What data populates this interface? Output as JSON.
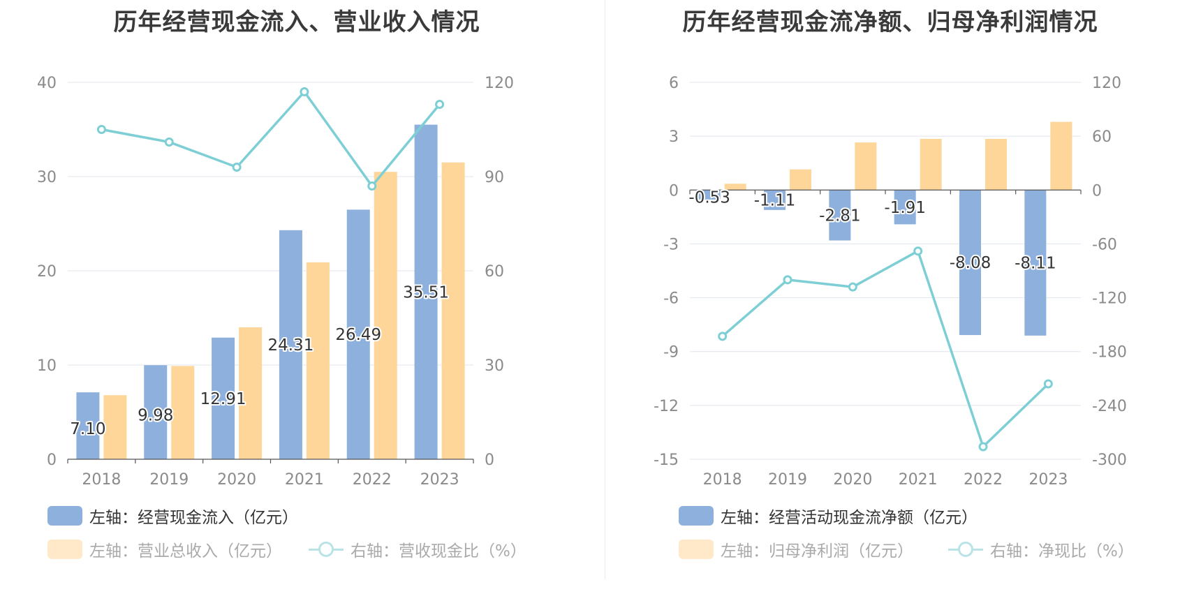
{
  "colors": {
    "bar_blue": "#8eb0dc",
    "bar_orange": "#fed69a",
    "line_teal": "#7dcfd5",
    "grid": "#e0e4ee",
    "legend_muted_blue": "#b9e3e6",
    "legend_muted_orange": "#ffe9c8"
  },
  "chart_data": [
    {
      "type": "bar",
      "title": "历年经营现金流入、营业收入情况",
      "categories": [
        "2018",
        "2019",
        "2020",
        "2021",
        "2022",
        "2023"
      ],
      "left_axis": {
        "ylim": [
          0,
          40
        ],
        "ticks": [
          "0",
          "10",
          "20",
          "30",
          "40"
        ]
      },
      "right_axis": {
        "ylim": [
          0,
          120
        ],
        "ticks": [
          "0",
          "30",
          "60",
          "90",
          "120"
        ]
      },
      "grid": true,
      "series": [
        {
          "name": "左轴：经营现金流入（亿元）",
          "kind": "bar",
          "axis": "left",
          "values": [
            7.1,
            9.98,
            12.91,
            24.31,
            26.49,
            35.51
          ],
          "labels": [
            "7.10",
            "9.98",
            "12.91",
            "24.31",
            "26.49",
            "35.51"
          ]
        },
        {
          "name": "左轴：营业总收入（亿元）",
          "kind": "bar",
          "axis": "left",
          "values": [
            6.8,
            9.9,
            14.0,
            20.9,
            30.5,
            31.5
          ]
        },
        {
          "name": "右轴：营收现金比（%）",
          "kind": "line",
          "axis": "right",
          "values": [
            105,
            101,
            93,
            117,
            87,
            113
          ]
        }
      ],
      "legend": [
        {
          "label": "左轴：经营现金流入（亿元）",
          "type": "rect",
          "active": true
        },
        {
          "label": "左轴：营业总收入（亿元）",
          "type": "rect",
          "active": false
        },
        {
          "label": "右轴：营收现金比（%）",
          "type": "line",
          "active": false
        }
      ]
    },
    {
      "type": "bar",
      "title": "历年经营现金流净额、归母净利润情况",
      "categories": [
        "2018",
        "2019",
        "2020",
        "2021",
        "2022",
        "2023"
      ],
      "left_axis": {
        "ylim": [
          -15,
          6
        ],
        "ticks": [
          "-15",
          "-12",
          "-9",
          "-6",
          "-3",
          "0",
          "3",
          "6"
        ]
      },
      "right_axis": {
        "ylim": [
          -300,
          120
        ],
        "ticks": [
          "-300",
          "-240",
          "-180",
          "-120",
          "-60",
          "0",
          "60",
          "120"
        ]
      },
      "grid": true,
      "series": [
        {
          "name": "左轴：经营活动现金流净额（亿元）",
          "kind": "bar",
          "axis": "left",
          "values": [
            -0.53,
            -1.11,
            -2.81,
            -1.91,
            -8.08,
            -8.11
          ],
          "labels": [
            "-0.53",
            "-1.11",
            "-2.81",
            "-1.91",
            "-8.08",
            "-8.11"
          ]
        },
        {
          "name": "左轴：归母净利润（亿元）",
          "kind": "bar",
          "axis": "left",
          "values": [
            0.35,
            1.15,
            2.65,
            2.85,
            2.85,
            3.8
          ]
        },
        {
          "name": "右轴：净现比（%）",
          "kind": "line",
          "axis": "right",
          "values": [
            -163,
            -100,
            -108,
            -68,
            -286,
            -216
          ]
        }
      ],
      "legend": [
        {
          "label": "左轴：经营活动现金流净额（亿元）",
          "type": "rect",
          "active": true
        },
        {
          "label": "左轴：归母净利润（亿元）",
          "type": "rect",
          "active": false
        },
        {
          "label": "右轴：净现比（%）",
          "type": "line",
          "active": false
        }
      ]
    }
  ]
}
